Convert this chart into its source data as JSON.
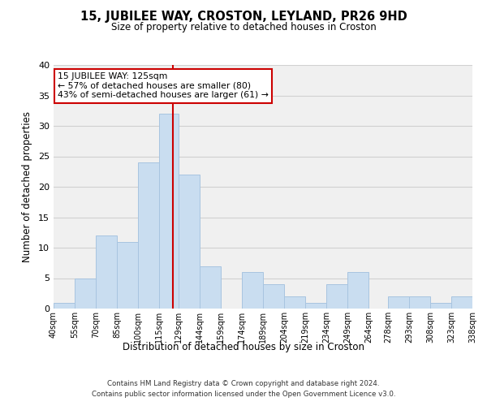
{
  "title": "15, JUBILEE WAY, CROSTON, LEYLAND, PR26 9HD",
  "subtitle": "Size of property relative to detached houses in Croston",
  "xlabel": "Distribution of detached houses by size in Croston",
  "ylabel": "Number of detached properties",
  "bar_color": "#c9ddf0",
  "bar_edgecolor": "#a8c4e0",
  "grid_color": "#d0d0d0",
  "background_color": "#f0f0f0",
  "vline_x": 125,
  "vline_color": "#cc0000",
  "annotation_title": "15 JUBILEE WAY: 125sqm",
  "annotation_line1": "← 57% of detached houses are smaller (80)",
  "annotation_line2": "43% of semi-detached houses are larger (61) →",
  "annotation_box_edgecolor": "#cc0000",
  "bins_left": [
    40,
    55,
    70,
    85,
    100,
    115,
    129,
    144,
    159,
    174,
    189,
    204,
    219,
    234,
    249,
    264,
    278,
    293,
    308,
    323
  ],
  "bins_right": [
    55,
    70,
    85,
    100,
    115,
    129,
    144,
    159,
    174,
    189,
    204,
    219,
    234,
    249,
    264,
    278,
    293,
    308,
    323,
    338
  ],
  "counts": [
    1,
    5,
    12,
    11,
    24,
    32,
    22,
    7,
    0,
    6,
    4,
    2,
    1,
    4,
    6,
    0,
    2,
    2,
    1,
    2
  ],
  "tick_labels": [
    "40sqm",
    "55sqm",
    "70sqm",
    "85sqm",
    "100sqm",
    "115sqm",
    "129sqm",
    "144sqm",
    "159sqm",
    "174sqm",
    "189sqm",
    "204sqm",
    "219sqm",
    "234sqm",
    "249sqm",
    "264sqm",
    "278sqm",
    "293sqm",
    "308sqm",
    "323sqm",
    "338sqm"
  ],
  "tick_positions": [
    40,
    55,
    70,
    85,
    100,
    115,
    129,
    144,
    159,
    174,
    189,
    204,
    219,
    234,
    249,
    264,
    278,
    293,
    308,
    323,
    338
  ],
  "ylim": [
    0,
    40
  ],
  "yticks": [
    0,
    5,
    10,
    15,
    20,
    25,
    30,
    35,
    40
  ],
  "footer1": "Contains HM Land Registry data © Crown copyright and database right 2024.",
  "footer2": "Contains public sector information licensed under the Open Government Licence v3.0."
}
